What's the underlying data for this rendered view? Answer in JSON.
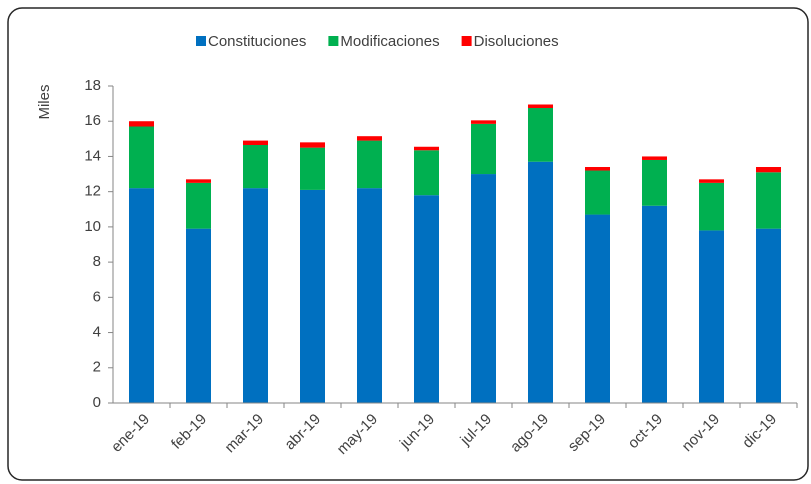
{
  "chart_data": {
    "type": "stacked_bar",
    "y_label": "Miles",
    "categories": [
      "ene-19",
      "feb-19",
      "mar-19",
      "abr-19",
      "may-19",
      "jun-19",
      "jul-19",
      "ago-19",
      "sep-19",
      "oct-19",
      "nov-19",
      "dic-19"
    ],
    "series": [
      {
        "name": "Constituciones",
        "color": "#0070c0",
        "values": [
          12.2,
          9.9,
          12.2,
          12.1,
          12.2,
          11.8,
          13.0,
          13.7,
          10.7,
          11.2,
          9.8,
          9.9
        ]
      },
      {
        "name": "Modificaciones",
        "color": "#00b050",
        "values": [
          3.5,
          2.6,
          2.45,
          2.4,
          2.7,
          2.55,
          2.85,
          3.05,
          2.5,
          2.6,
          2.7,
          3.2
        ]
      },
      {
        "name": "Disoluciones",
        "color": "#ff0000",
        "values": [
          0.3,
          0.2,
          0.25,
          0.3,
          0.25,
          0.2,
          0.2,
          0.2,
          0.2,
          0.2,
          0.2,
          0.3
        ]
      }
    ],
    "ylim": [
      0,
      18
    ],
    "yticks": [
      0,
      2,
      4,
      6,
      8,
      10,
      12,
      14,
      16,
      18
    ],
    "legend": "top"
  }
}
